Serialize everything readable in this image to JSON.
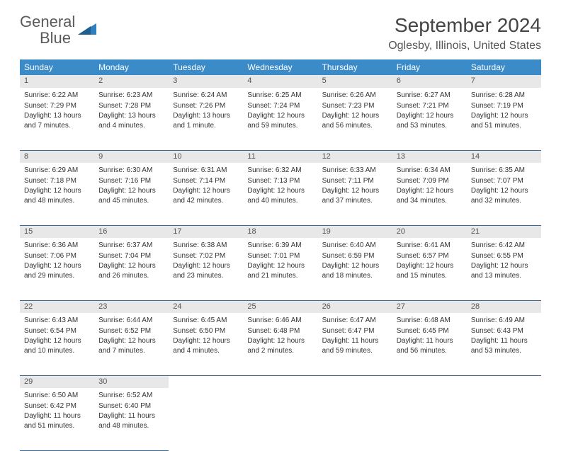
{
  "logo": {
    "text1": "General",
    "text2": "Blue"
  },
  "title": "September 2024",
  "location": "Oglesby, Illinois, United States",
  "colors": {
    "header_bg": "#3b8bc8",
    "header_text": "#ffffff",
    "daynum_bg": "#e8e8e8",
    "border": "#3b6a94",
    "logo_gray": "#5a5a5a",
    "logo_blue": "#2f7fbf"
  },
  "weekdays": [
    "Sunday",
    "Monday",
    "Tuesday",
    "Wednesday",
    "Thursday",
    "Friday",
    "Saturday"
  ],
  "weeks": [
    [
      {
        "n": "1",
        "sr": "6:22 AM",
        "ss": "7:29 PM",
        "dl": "13 hours and 7 minutes."
      },
      {
        "n": "2",
        "sr": "6:23 AM",
        "ss": "7:28 PM",
        "dl": "13 hours and 4 minutes."
      },
      {
        "n": "3",
        "sr": "6:24 AM",
        "ss": "7:26 PM",
        "dl": "13 hours and 1 minute."
      },
      {
        "n": "4",
        "sr": "6:25 AM",
        "ss": "7:24 PM",
        "dl": "12 hours and 59 minutes."
      },
      {
        "n": "5",
        "sr": "6:26 AM",
        "ss": "7:23 PM",
        "dl": "12 hours and 56 minutes."
      },
      {
        "n": "6",
        "sr": "6:27 AM",
        "ss": "7:21 PM",
        "dl": "12 hours and 53 minutes."
      },
      {
        "n": "7",
        "sr": "6:28 AM",
        "ss": "7:19 PM",
        "dl": "12 hours and 51 minutes."
      }
    ],
    [
      {
        "n": "8",
        "sr": "6:29 AM",
        "ss": "7:18 PM",
        "dl": "12 hours and 48 minutes."
      },
      {
        "n": "9",
        "sr": "6:30 AM",
        "ss": "7:16 PM",
        "dl": "12 hours and 45 minutes."
      },
      {
        "n": "10",
        "sr": "6:31 AM",
        "ss": "7:14 PM",
        "dl": "12 hours and 42 minutes."
      },
      {
        "n": "11",
        "sr": "6:32 AM",
        "ss": "7:13 PM",
        "dl": "12 hours and 40 minutes."
      },
      {
        "n": "12",
        "sr": "6:33 AM",
        "ss": "7:11 PM",
        "dl": "12 hours and 37 minutes."
      },
      {
        "n": "13",
        "sr": "6:34 AM",
        "ss": "7:09 PM",
        "dl": "12 hours and 34 minutes."
      },
      {
        "n": "14",
        "sr": "6:35 AM",
        "ss": "7:07 PM",
        "dl": "12 hours and 32 minutes."
      }
    ],
    [
      {
        "n": "15",
        "sr": "6:36 AM",
        "ss": "7:06 PM",
        "dl": "12 hours and 29 minutes."
      },
      {
        "n": "16",
        "sr": "6:37 AM",
        "ss": "7:04 PM",
        "dl": "12 hours and 26 minutes."
      },
      {
        "n": "17",
        "sr": "6:38 AM",
        "ss": "7:02 PM",
        "dl": "12 hours and 23 minutes."
      },
      {
        "n": "18",
        "sr": "6:39 AM",
        "ss": "7:01 PM",
        "dl": "12 hours and 21 minutes."
      },
      {
        "n": "19",
        "sr": "6:40 AM",
        "ss": "6:59 PM",
        "dl": "12 hours and 18 minutes."
      },
      {
        "n": "20",
        "sr": "6:41 AM",
        "ss": "6:57 PM",
        "dl": "12 hours and 15 minutes."
      },
      {
        "n": "21",
        "sr": "6:42 AM",
        "ss": "6:55 PM",
        "dl": "12 hours and 13 minutes."
      }
    ],
    [
      {
        "n": "22",
        "sr": "6:43 AM",
        "ss": "6:54 PM",
        "dl": "12 hours and 10 minutes."
      },
      {
        "n": "23",
        "sr": "6:44 AM",
        "ss": "6:52 PM",
        "dl": "12 hours and 7 minutes."
      },
      {
        "n": "24",
        "sr": "6:45 AM",
        "ss": "6:50 PM",
        "dl": "12 hours and 4 minutes."
      },
      {
        "n": "25",
        "sr": "6:46 AM",
        "ss": "6:48 PM",
        "dl": "12 hours and 2 minutes."
      },
      {
        "n": "26",
        "sr": "6:47 AM",
        "ss": "6:47 PM",
        "dl": "11 hours and 59 minutes."
      },
      {
        "n": "27",
        "sr": "6:48 AM",
        "ss": "6:45 PM",
        "dl": "11 hours and 56 minutes."
      },
      {
        "n": "28",
        "sr": "6:49 AM",
        "ss": "6:43 PM",
        "dl": "11 hours and 53 minutes."
      }
    ],
    [
      {
        "n": "29",
        "sr": "6:50 AM",
        "ss": "6:42 PM",
        "dl": "11 hours and 51 minutes."
      },
      {
        "n": "30",
        "sr": "6:52 AM",
        "ss": "6:40 PM",
        "dl": "11 hours and 48 minutes."
      },
      null,
      null,
      null,
      null,
      null
    ]
  ],
  "labels": {
    "sunrise": "Sunrise:",
    "sunset": "Sunset:",
    "daylight": "Daylight:"
  }
}
